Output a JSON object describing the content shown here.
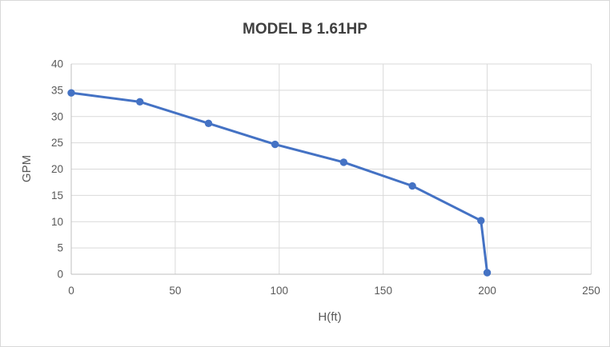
{
  "chart_data": {
    "type": "line",
    "title": "MODEL B 1.61HP",
    "xlabel": "H(ft)",
    "ylabel": "GPM",
    "x": [
      0,
      33,
      66,
      98,
      131,
      164,
      197,
      200
    ],
    "y": [
      34.5,
      32.8,
      28.7,
      24.7,
      21.3,
      16.8,
      10.2,
      0.3
    ],
    "xlim": [
      0,
      250
    ],
    "ylim": [
      0,
      40
    ],
    "x_ticks": [
      0,
      50,
      100,
      150,
      200,
      250
    ],
    "y_ticks": [
      0,
      5,
      10,
      15,
      20,
      25,
      30,
      35,
      40
    ],
    "grid": true,
    "legend_position": "none",
    "series_name": "MODEL B 1.61HP",
    "colors": {
      "series": "#4472C4",
      "title": "#404040",
      "tick_labels": "#595959",
      "axis_titles": "#595959",
      "gridlines": "#D9D9D9",
      "axis_line": "#BFBFBF",
      "background": "#FFFFFF",
      "border": "#D9D9D9"
    }
  }
}
